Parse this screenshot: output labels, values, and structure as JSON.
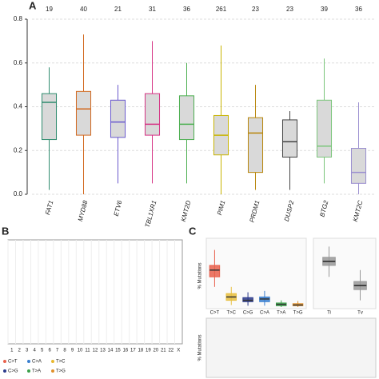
{
  "chart_data": [
    {
      "type": "box",
      "panel": "A",
      "ylim": [
        0,
        0.8
      ],
      "yticks": [
        {
          "value": 0,
          "label": "0.0"
        },
        {
          "value": 0.2,
          "label": "0.2"
        },
        {
          "value": 0.4,
          "label": "0.4"
        },
        {
          "value": 0.6,
          "label": "0.6"
        },
        {
          "value": 0.8,
          "label": "0.8"
        }
      ],
      "grid": true,
      "boxes": [
        {
          "name": "FAT1",
          "n": 19,
          "color": "#2e8b6e",
          "low": 0.02,
          "q1": 0.25,
          "median": 0.42,
          "q3": 0.46,
          "high": 0.58
        },
        {
          "name": "MYD88",
          "n": 40,
          "color": "#d2691e",
          "low": 0.0,
          "q1": 0.27,
          "median": 0.39,
          "q3": 0.47,
          "high": 0.73
        },
        {
          "name": "ETV6",
          "n": 21,
          "color": "#6a5acd",
          "low": 0.05,
          "q1": 0.26,
          "median": 0.33,
          "q3": 0.43,
          "high": 0.5
        },
        {
          "name": "TBL1XR1",
          "n": 31,
          "color": "#d63384",
          "low": 0.05,
          "q1": 0.27,
          "median": 0.32,
          "q3": 0.46,
          "high": 0.7
        },
        {
          "name": "KMT2D",
          "n": 36,
          "color": "#4caf50",
          "low": 0.05,
          "q1": 0.25,
          "median": 0.32,
          "q3": 0.45,
          "high": 0.6
        },
        {
          "name": "PIM1",
          "n": 261,
          "color": "#c8b400",
          "low": 0.0,
          "q1": 0.18,
          "median": 0.27,
          "q3": 0.36,
          "high": 0.68
        },
        {
          "name": "PRDM1",
          "n": 23,
          "color": "#b8860b",
          "low": 0.02,
          "q1": 0.1,
          "median": 0.28,
          "q3": 0.35,
          "high": 0.5
        },
        {
          "name": "DUSP2",
          "n": 23,
          "color": "#444444",
          "low": 0.02,
          "q1": 0.17,
          "median": 0.24,
          "q3": 0.34,
          "high": 0.38
        },
        {
          "name": "BTG2",
          "n": 39,
          "color": "#7bc67b",
          "low": 0.05,
          "q1": 0.17,
          "median": 0.22,
          "q3": 0.43,
          "high": 0.62
        },
        {
          "name": "KMT2C",
          "n": 36,
          "color": "#9b8fd0",
          "low": 0.0,
          "q1": 0.05,
          "median": 0.1,
          "q3": 0.21,
          "high": 0.42
        }
      ]
    },
    {
      "type": "genome",
      "panel": "B",
      "categories": [
        "1",
        "2",
        "3",
        "4",
        "5",
        "6",
        "7",
        "8",
        "9",
        "10",
        "11",
        "12",
        "13",
        "14",
        "15",
        "16",
        "17",
        "18",
        "19",
        "20",
        "21",
        "22",
        "X"
      ],
      "legend": [
        {
          "name": "C>T",
          "color": "#e8604c"
        },
        {
          "name": "C>A",
          "color": "#3a7fd0"
        },
        {
          "name": "T>C",
          "color": "#e8b830"
        },
        {
          "name": "C>G",
          "color": "#2b3a8c"
        },
        {
          "name": "T>A",
          "color": "#3aa04a"
        },
        {
          "name": "T>G",
          "color": "#e0902a"
        }
      ]
    },
    {
      "type": "box",
      "panel": "C",
      "ylabel": "% Mutations",
      "ylim": [
        0,
        100
      ],
      "boxes": [
        {
          "name": "C>T",
          "color": "#e8604c",
          "low": 30,
          "q1": 45,
          "median": 55,
          "q3": 62,
          "high": 85
        },
        {
          "name": "T>C",
          "color": "#e8c040",
          "low": 3,
          "q1": 10,
          "median": 15,
          "q3": 20,
          "high": 30
        },
        {
          "name": "C>G",
          "color": "#2b3a8c",
          "low": 2,
          "q1": 8,
          "median": 10,
          "q3": 14,
          "high": 22
        },
        {
          "name": "C>A",
          "color": "#3a7fd0",
          "low": 2,
          "q1": 8,
          "median": 12,
          "q3": 15,
          "high": 24
        },
        {
          "name": "T>A",
          "color": "#3aa04a",
          "low": 0,
          "q1": 2,
          "median": 4,
          "q3": 6,
          "high": 10
        },
        {
          "name": "T>G",
          "color": "#e0902a",
          "low": 0,
          "q1": 2,
          "median": 3,
          "q3": 5,
          "high": 9
        }
      ],
      "boxes2": [
        {
          "name": "Ti",
          "color": "#999999",
          "low": 45,
          "q1": 62,
          "median": 68,
          "q3": 74,
          "high": 90
        },
        {
          "name": "Tv",
          "color": "#999999",
          "low": 10,
          "q1": 26,
          "median": 32,
          "q3": 38,
          "high": 55
        }
      ]
    }
  ]
}
